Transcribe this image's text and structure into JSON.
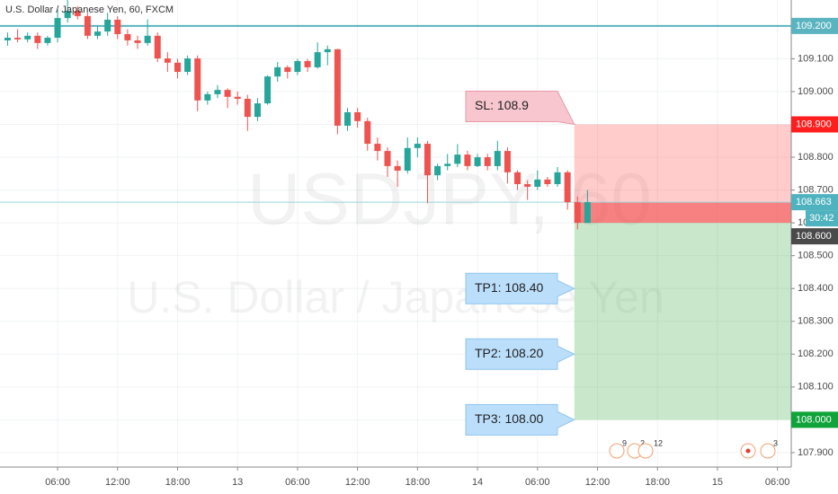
{
  "title": "U.S. Dollar / Japanese Yen, 60, FXCM",
  "chart_data": {
    "type": "candlestick",
    "watermark": [
      "USDJPY, 60",
      "U.S. Dollar / Japanese Yen"
    ],
    "x": [
      -5,
      -4,
      -3,
      -2,
      -1,
      0,
      1,
      2,
      3,
      4,
      5,
      6,
      7,
      8,
      9,
      10,
      11,
      12,
      13,
      14,
      15,
      16,
      17,
      18,
      19,
      20,
      21,
      22,
      23,
      24,
      25,
      26,
      27,
      28,
      29,
      30,
      31,
      32,
      33,
      34,
      35,
      36,
      37,
      38,
      39,
      40,
      41,
      42,
      43,
      44,
      45,
      46,
      47,
      48,
      49,
      50,
      51,
      52,
      53
    ],
    "open": [
      109.156,
      109.164,
      109.159,
      109.17,
      109.148,
      109.164,
      109.224,
      109.246,
      109.23,
      109.17,
      109.183,
      109.219,
      109.175,
      109.156,
      109.148,
      109.17,
      109.101,
      109.088,
      109.06,
      109.101,
      108.973,
      108.992,
      109.005,
      108.984,
      108.978,
      108.923,
      108.964,
      109.046,
      109.074,
      109.06,
      109.093,
      109.074,
      109.12,
      109.129,
      108.896,
      108.937,
      108.91,
      108.841,
      108.819,
      108.773,
      108.759,
      108.828,
      108.841,
      108.745,
      108.773,
      108.78,
      108.808,
      108.773,
      108.8,
      108.773,
      108.819,
      108.754,
      108.718,
      108.71,
      108.732,
      108.718,
      108.754,
      108.663,
      108.6
    ],
    "high": [
      109.18,
      109.19,
      109.18,
      109.18,
      109.17,
      109.25,
      109.28,
      109.26,
      109.24,
      109.2,
      109.24,
      109.23,
      109.19,
      109.17,
      109.22,
      109.18,
      109.12,
      109.1,
      109.11,
      109.11,
      109.0,
      109.02,
      109.01,
      109.0,
      108.99,
      108.98,
      109.05,
      109.09,
      109.08,
      109.1,
      109.1,
      109.15,
      109.14,
      109.13,
      108.95,
      108.95,
      108.92,
      108.86,
      108.83,
      108.79,
      108.86,
      108.86,
      108.85,
      108.78,
      108.81,
      108.84,
      108.82,
      108.81,
      108.81,
      108.85,
      108.83,
      108.76,
      108.73,
      108.76,
      108.74,
      108.77,
      108.76,
      108.68,
      108.7
    ],
    "low": [
      109.14,
      109.15,
      109.15,
      109.13,
      109.14,
      109.15,
      109.21,
      109.22,
      109.16,
      109.16,
      109.17,
      109.16,
      109.14,
      109.13,
      109.14,
      109.09,
      109.06,
      109.04,
      109.05,
      108.94,
      108.96,
      108.98,
      108.95,
      108.96,
      108.88,
      108.91,
      108.96,
      109.03,
      109.04,
      109.05,
      109.06,
      109.07,
      109.08,
      108.87,
      108.88,
      108.89,
      108.82,
      108.79,
      108.74,
      108.71,
      108.75,
      108.8,
      108.66,
      108.73,
      108.76,
      108.77,
      108.76,
      108.77,
      108.76,
      108.76,
      108.72,
      108.7,
      108.67,
      108.7,
      108.71,
      108.71,
      108.64,
      108.58,
      108.6
    ],
    "close": [
      109.164,
      109.159,
      109.17,
      109.148,
      109.164,
      109.224,
      109.246,
      109.23,
      109.17,
      109.183,
      109.219,
      109.175,
      109.156,
      109.148,
      109.17,
      109.101,
      109.088,
      109.06,
      109.101,
      108.973,
      108.992,
      109.005,
      108.984,
      108.978,
      108.923,
      108.964,
      109.046,
      109.074,
      109.06,
      109.093,
      109.074,
      109.12,
      109.129,
      108.896,
      108.937,
      108.91,
      108.841,
      108.819,
      108.773,
      108.759,
      108.828,
      108.841,
      108.745,
      108.773,
      108.78,
      108.808,
      108.773,
      108.8,
      108.773,
      108.819,
      108.754,
      108.718,
      108.71,
      108.732,
      108.718,
      108.754,
      108.663,
      108.6,
      108.663
    ],
    "up_color": "#26a69a",
    "down_color": "#ef5350",
    "xlim": [
      -5.76,
      73.38
    ],
    "xticks": [
      {
        "value": 0,
        "label": "06:00"
      },
      {
        "value": 6,
        "label": "12:00"
      },
      {
        "value": 12,
        "label": "18:00"
      },
      {
        "value": 18,
        "label": "13"
      },
      {
        "value": 24,
        "label": "06:00"
      },
      {
        "value": 30,
        "label": "12:00"
      },
      {
        "value": 36,
        "label": "18:00"
      },
      {
        "value": 42,
        "label": "14"
      },
      {
        "value": 48,
        "label": "06:00"
      },
      {
        "value": 54,
        "label": "12:00"
      },
      {
        "value": 60,
        "label": "18:00"
      },
      {
        "value": 66,
        "label": "15"
      },
      {
        "value": 72,
        "label": "06:00"
      }
    ],
    "ylim": [
      107.856,
      109.279
    ],
    "yticks": [
      {
        "value": 107.9,
        "label": "107.900"
      },
      {
        "value": 108.0,
        "label": "108.000"
      },
      {
        "value": 108.1,
        "label": "108.100"
      },
      {
        "value": 108.2,
        "label": "108.200"
      },
      {
        "value": 108.3,
        "label": "108.300"
      },
      {
        "value": 108.4,
        "label": "108.400"
      },
      {
        "value": 108.5,
        "label": "108.500"
      },
      {
        "value": 108.6,
        "label": "108.600"
      },
      {
        "value": 108.7,
        "label": "108.700"
      },
      {
        "value": 108.8,
        "label": "108.800"
      },
      {
        "value": 108.9,
        "label": "108.900"
      },
      {
        "value": 109.0,
        "label": "109.000"
      },
      {
        "value": 109.1,
        "label": "109.100"
      },
      {
        "value": 109.2,
        "label": "109.200"
      }
    ],
    "grid": true,
    "hlines": [
      {
        "value": 109.2,
        "color": "#5ab4c0"
      },
      {
        "value": 108.663,
        "color": "#9fd3da"
      }
    ],
    "markers": [
      {
        "value": 109.2,
        "label": "109.200",
        "color": "#5ab4c0"
      },
      {
        "value": 108.9,
        "label": "108.900",
        "color": "#ff1e1e"
      },
      {
        "value": 108.663,
        "label": "108.663",
        "color": "#4fb3bf",
        "countdown": "30:42"
      },
      {
        "value": 108.6,
        "label": "108.600",
        "color": "#4a4a4a"
      },
      {
        "value": 108.0,
        "label": "108.000",
        "color": "#0fa33a"
      }
    ],
    "position": {
      "stop": 108.9,
      "entry": 108.6,
      "current": 108.663,
      "target": 108.0
    },
    "callouts": [
      {
        "text": "SL: 108.9",
        "value": 108.9,
        "color": "#f8c6cf"
      },
      {
        "text": "TP1: 108.40",
        "value": 108.4,
        "color": "#bbdefb"
      },
      {
        "text": "TP2: 108.20",
        "value": 108.2,
        "color": "#bbdefb"
      },
      {
        "text": "TP3: 108.00",
        "value": 108.0,
        "color": "#bbdefb"
      }
    ],
    "events": [
      "9",
      "2",
      "12",
      "3"
    ]
  }
}
